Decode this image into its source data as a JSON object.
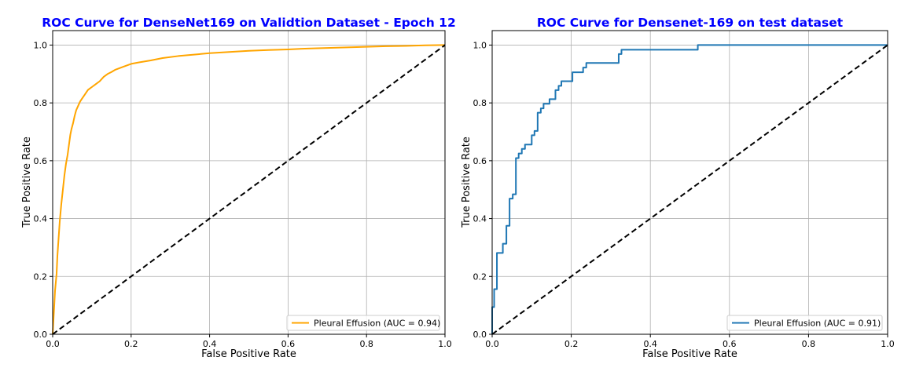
{
  "chart_data": [
    {
      "type": "line",
      "title": "ROC Curve for DenseNet169 on Validtion Dataset - Epoch 12",
      "xlabel": "False Positive Rate",
      "ylabel": "True Positive Rate",
      "xlim": [
        0,
        1
      ],
      "ylim": [
        0,
        1.05
      ],
      "xticks": [
        "0.0",
        "0.2",
        "0.4",
        "0.6",
        "0.8",
        "1.0"
      ],
      "yticks": [
        "0.0",
        "0.2",
        "0.4",
        "0.6",
        "0.8",
        "1.0"
      ],
      "grid": true,
      "legend_position": "lower-right",
      "series": [
        {
          "name": "Pleural Effusion (AUC = 0.94)",
          "color": "#ffa500",
          "style": "solid",
          "x": [
            0,
            0.002,
            0.004,
            0.006,
            0.008,
            0.01,
            0.012,
            0.015,
            0.018,
            0.022,
            0.026,
            0.03,
            0.034,
            0.038,
            0.042,
            0.045,
            0.048,
            0.052,
            0.056,
            0.06,
            0.065,
            0.07,
            0.075,
            0.08,
            0.085,
            0.09,
            0.095,
            0.1,
            0.11,
            0.12,
            0.13,
            0.14,
            0.15,
            0.16,
            0.18,
            0.2,
            0.22,
            0.25,
            0.28,
            0.32,
            0.36,
            0.4,
            0.45,
            0.5,
            0.55,
            0.6,
            0.65,
            0.7,
            0.75,
            0.8,
            0.85,
            0.9,
            0.95,
            1.0
          ],
          "y": [
            0,
            0.05,
            0.1,
            0.15,
            0.18,
            0.21,
            0.27,
            0.33,
            0.39,
            0.45,
            0.5,
            0.55,
            0.59,
            0.62,
            0.66,
            0.69,
            0.71,
            0.73,
            0.755,
            0.775,
            0.79,
            0.805,
            0.815,
            0.825,
            0.835,
            0.845,
            0.85,
            0.855,
            0.865,
            0.875,
            0.89,
            0.9,
            0.907,
            0.915,
            0.925,
            0.935,
            0.94,
            0.947,
            0.955,
            0.962,
            0.967,
            0.972,
            0.976,
            0.98,
            0.983,
            0.985,
            0.988,
            0.99,
            0.992,
            0.994,
            0.996,
            0.997,
            0.999,
            1.0
          ]
        },
        {
          "name": "",
          "color": "#000000",
          "style": "dashed",
          "x": [
            0,
            1
          ],
          "y": [
            0,
            1
          ]
        }
      ]
    },
    {
      "type": "line",
      "title": "ROC Curve for Densenet-169 on test dataset",
      "xlabel": "False Positive Rate",
      "ylabel": "True Positive Rate",
      "xlim": [
        0,
        1
      ],
      "ylim": [
        0,
        1.05
      ],
      "xticks": [
        "0.0",
        "0.2",
        "0.4",
        "0.6",
        "0.8",
        "1.0"
      ],
      "yticks": [
        "0.0",
        "0.2",
        "0.4",
        "0.6",
        "0.8",
        "1.0"
      ],
      "grid": true,
      "legend_position": "lower-right",
      "series": [
        {
          "name": "Pleural Effusion (AUC = 0.91)",
          "color": "#1f77b4",
          "style": "solid",
          "x": [
            0,
            0,
            0.005,
            0.005,
            0.012,
            0.012,
            0.027,
            0.027,
            0.036,
            0.036,
            0.044,
            0.044,
            0.052,
            0.052,
            0.06,
            0.06,
            0.067,
            0.067,
            0.075,
            0.075,
            0.083,
            0.083,
            0.1,
            0.1,
            0.107,
            0.107,
            0.115,
            0.115,
            0.123,
            0.123,
            0.13,
            0.13,
            0.145,
            0.145,
            0.16,
            0.16,
            0.168,
            0.168,
            0.175,
            0.175,
            0.203,
            0.203,
            0.23,
            0.23,
            0.238,
            0.238,
            0.32,
            0.32,
            0.327,
            0.327,
            0.52,
            0.52,
            1.0
          ],
          "y": [
            0,
            0.094,
            0.094,
            0.156,
            0.156,
            0.281,
            0.281,
            0.313,
            0.313,
            0.375,
            0.375,
            0.469,
            0.469,
            0.484,
            0.484,
            0.609,
            0.609,
            0.625,
            0.625,
            0.641,
            0.641,
            0.656,
            0.656,
            0.688,
            0.688,
            0.703,
            0.703,
            0.766,
            0.766,
            0.781,
            0.781,
            0.797,
            0.797,
            0.813,
            0.813,
            0.844,
            0.844,
            0.859,
            0.859,
            0.875,
            0.875,
            0.906,
            0.906,
            0.922,
            0.922,
            0.938,
            0.938,
            0.969,
            0.969,
            0.984,
            0.984,
            1.0,
            1.0
          ]
        },
        {
          "name": "",
          "color": "#000000",
          "style": "dashed",
          "x": [
            0,
            1
          ],
          "y": [
            0,
            1
          ]
        }
      ]
    }
  ]
}
